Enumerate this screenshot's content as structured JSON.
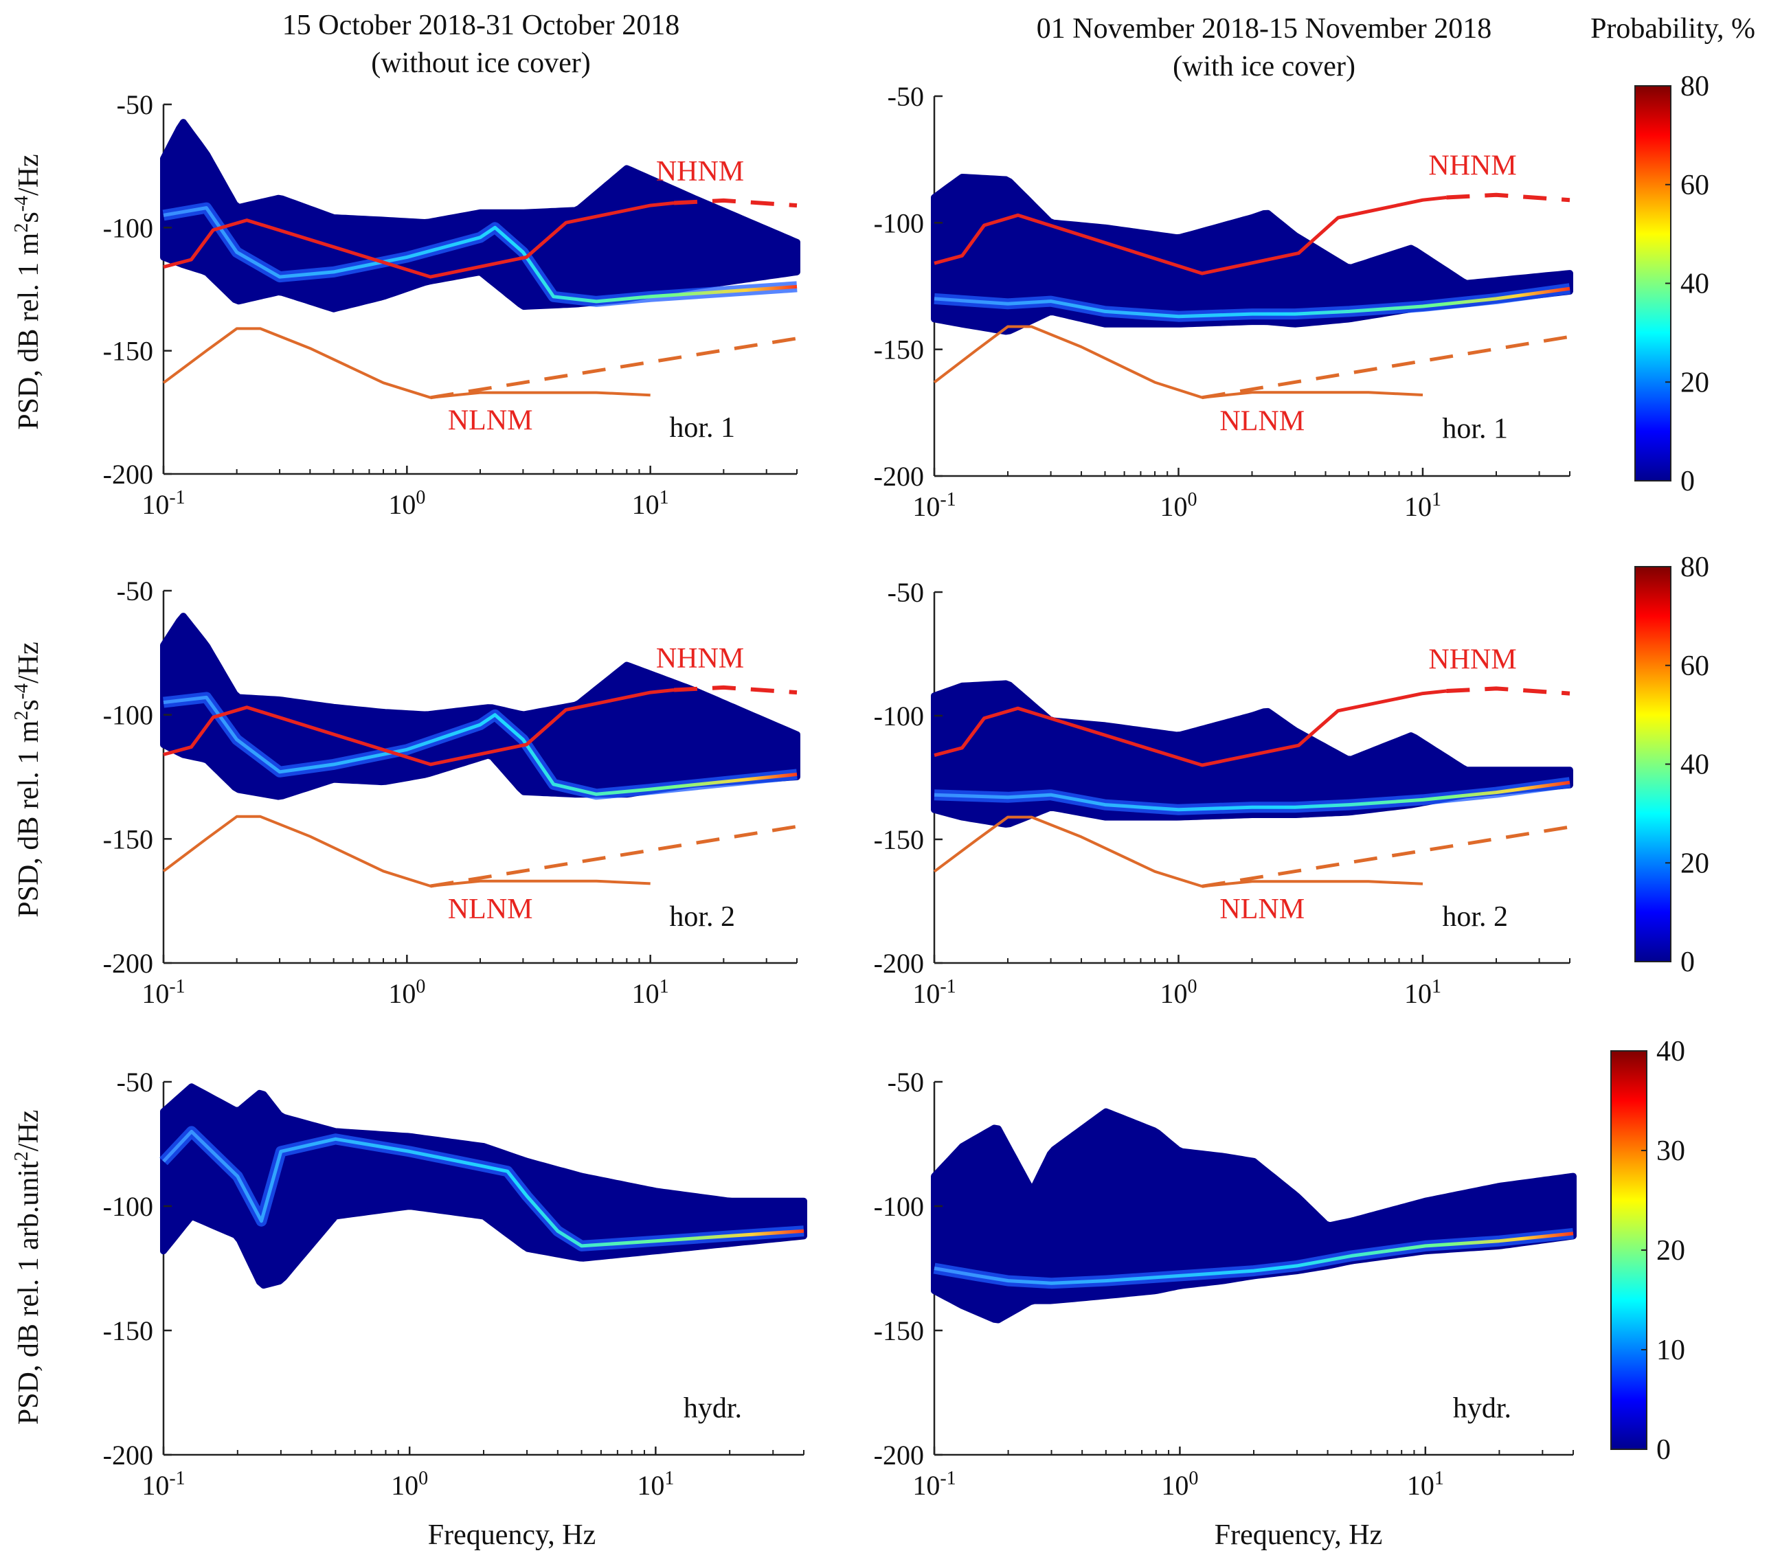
{
  "figure": {
    "columns": [
      {
        "title_line1": "15 October 2018-31 October 2018",
        "title_line2": "(without ice cover)"
      },
      {
        "title_line1": "01 November 2018-15 November 2018",
        "title_line2": "(with ice cover)"
      }
    ],
    "colorbar_title": "Probability, %",
    "row_ylabels": [
      [
        "PSD, dB rel. 1 m",
        "2",
        "s",
        "-4",
        "/Hz"
      ],
      [
        "PSD, dB rel. 1 m",
        "2",
        "s",
        "-4",
        "/Hz"
      ],
      [
        "PSD, dB rel. 1 arb.unit",
        "2",
        "/Hz"
      ]
    ],
    "xlabel": "Frequency, Hz",
    "colors": {
      "nhnm": "#e8241f",
      "nlnm": "#de6a2a",
      "density_low": "#00008f",
      "density_high": "#800000"
    }
  },
  "chart_data": [
    {
      "type": "heatmap",
      "id": "oct-hor1",
      "panel_label": "hor. 1",
      "xscale": "log",
      "xlim": [
        0.1,
        40
      ],
      "ylim": [
        -200,
        -50
      ],
      "xticks": [
        "10",
        "10",
        "10"
      ],
      "xtick_exponents": [
        "-1",
        "0",
        "1"
      ],
      "xtick_values": [
        0.1,
        1,
        10
      ],
      "yticks": [
        "-50",
        "-100",
        "-150",
        "-200"
      ],
      "ytick_values": [
        -50,
        -100,
        -150,
        -200
      ],
      "colorbar": {
        "range": [
          0,
          80
        ],
        "ticks": [
          "0",
          "20",
          "40",
          "60",
          "80"
        ]
      },
      "envelope": {
        "f": [
          0.1,
          0.12,
          0.15,
          0.2,
          0.3,
          0.5,
          0.8,
          1.2,
          2,
          3,
          5,
          8,
          15,
          40
        ],
        "upper": [
          -72,
          -57,
          -70,
          -92,
          -88,
          -96,
          -97,
          -98,
          -94,
          -94,
          -93,
          -76,
          -88,
          -106
        ],
        "lower": [
          -112,
          -115,
          -118,
          -130,
          -126,
          -133,
          -128,
          -122,
          -118,
          -132,
          -131,
          -129,
          -124,
          -118
        ]
      },
      "mode": {
        "f": [
          0.1,
          0.15,
          0.2,
          0.3,
          0.5,
          1,
          2,
          2.3,
          3,
          4,
          6,
          10,
          20,
          40
        ],
        "db": [
          -95,
          -92,
          -110,
          -120,
          -118,
          -112,
          -104,
          -100,
          -110,
          -128,
          -130,
          -128,
          -126,
          -124
        ]
      },
      "nhnm_label": "NHNM",
      "nlnm_label": "NLNM",
      "nhnm": {
        "f": [
          0.1,
          0.13,
          0.16,
          0.22,
          1.25,
          3.1,
          4.5,
          10,
          12.5
        ],
        "db": [
          -116,
          -113,
          -101,
          -97,
          -120,
          -112,
          -98,
          -91,
          -90
        ]
      },
      "nhnm_ext": {
        "f": [
          12.5,
          20,
          40
        ],
        "db": [
          -90,
          -89,
          -91
        ]
      },
      "nlnm": {
        "f": [
          0.1,
          0.15,
          0.2,
          0.25,
          0.4,
          0.8,
          1.25,
          2,
          3,
          6,
          10
        ],
        "db": [
          -163,
          -150,
          -141,
          -141,
          -149,
          -163,
          -169,
          -167,
          -167,
          -167,
          -168
        ]
      },
      "nlnm_ext": {
        "f": [
          1.25,
          40
        ],
        "db": [
          -169,
          -145
        ]
      }
    },
    {
      "type": "heatmap",
      "id": "nov-hor1",
      "panel_label": "hor. 1",
      "xscale": "log",
      "xlim": [
        0.1,
        40
      ],
      "ylim": [
        -200,
        -50
      ],
      "xticks": [
        "10",
        "10",
        "10"
      ],
      "xtick_exponents": [
        "-1",
        "0",
        "1"
      ],
      "xtick_values": [
        0.1,
        1,
        10
      ],
      "yticks": [
        "-50",
        "-100",
        "-150",
        "-200"
      ],
      "ytick_values": [
        -50,
        -100,
        -150,
        -200
      ],
      "colorbar": {
        "range": [
          0,
          80
        ],
        "ticks": [
          "0",
          "20",
          "40",
          "60",
          "80"
        ]
      },
      "envelope": {
        "f": [
          0.1,
          0.13,
          0.2,
          0.3,
          0.5,
          1,
          2,
          2.3,
          3,
          5,
          9,
          15,
          40
        ],
        "upper": [
          -90,
          -82,
          -83,
          -100,
          -102,
          -106,
          -98,
          -96,
          -105,
          -118,
          -110,
          -124,
          -120
        ],
        "lower": [
          -138,
          -140,
          -143,
          -135,
          -140,
          -140,
          -139,
          -139,
          -140,
          -138,
          -134,
          -132,
          -127
        ]
      },
      "mode": {
        "f": [
          0.1,
          0.2,
          0.3,
          0.5,
          1,
          2,
          3,
          5,
          10,
          20,
          40
        ],
        "db": [
          -130,
          -132,
          -131,
          -135,
          -137,
          -136,
          -136,
          -135,
          -133,
          -130,
          -126
        ]
      },
      "nhnm_label": "NHNM",
      "nlnm_label": "NLNM",
      "nhnm": {
        "f": [
          0.1,
          0.13,
          0.16,
          0.22,
          1.25,
          3.1,
          4.5,
          10,
          12.5
        ],
        "db": [
          -116,
          -113,
          -101,
          -97,
          -120,
          -112,
          -98,
          -91,
          -90
        ]
      },
      "nhnm_ext": {
        "f": [
          12.5,
          20,
          40
        ],
        "db": [
          -90,
          -89,
          -91
        ]
      },
      "nlnm": {
        "f": [
          0.1,
          0.15,
          0.2,
          0.25,
          0.4,
          0.8,
          1.25,
          2,
          3,
          6,
          10
        ],
        "db": [
          -163,
          -150,
          -141,
          -141,
          -149,
          -163,
          -169,
          -167,
          -167,
          -167,
          -168
        ]
      },
      "nlnm_ext": {
        "f": [
          1.25,
          40
        ],
        "db": [
          -169,
          -145
        ]
      }
    },
    {
      "type": "heatmap",
      "id": "oct-hor2",
      "panel_label": "hor. 2",
      "xscale": "log",
      "xlim": [
        0.1,
        40
      ],
      "ylim": [
        -200,
        -50
      ],
      "xticks": [
        "10",
        "10",
        "10"
      ],
      "xtick_exponents": [
        "-1",
        "0",
        "1"
      ],
      "xtick_values": [
        0.1,
        1,
        10
      ],
      "yticks": [
        "-50",
        "-100",
        "-150",
        "-200"
      ],
      "ytick_values": [
        -50,
        -100,
        -150,
        -200
      ],
      "colorbar": {
        "range": [
          0,
          80
        ],
        "ticks": [
          "0",
          "20",
          "40",
          "60",
          "80"
        ]
      },
      "envelope": {
        "f": [
          0.1,
          0.12,
          0.15,
          0.2,
          0.3,
          0.5,
          0.8,
          1.2,
          2.2,
          3,
          5,
          8,
          15,
          40
        ],
        "upper": [
          -72,
          -60,
          -72,
          -93,
          -94,
          -97,
          -99,
          -100,
          -97,
          -100,
          -96,
          -80,
          -90,
          -108
        ],
        "lower": [
          -112,
          -116,
          -118,
          -130,
          -133,
          -126,
          -127,
          -124,
          -116,
          -131,
          -132,
          -132,
          -128,
          -125
        ]
      },
      "mode": {
        "f": [
          0.1,
          0.15,
          0.2,
          0.3,
          0.5,
          1,
          2,
          2.3,
          3,
          4,
          6,
          10,
          20,
          40
        ],
        "db": [
          -95,
          -93,
          -110,
          -123,
          -120,
          -114,
          -104,
          -100,
          -110,
          -128,
          -132,
          -130,
          -127,
          -124
        ]
      },
      "nhnm_label": "NHNM",
      "nlnm_label": "NLNM",
      "nhnm": {
        "f": [
          0.1,
          0.13,
          0.16,
          0.22,
          1.25,
          3.1,
          4.5,
          10,
          12.5
        ],
        "db": [
          -116,
          -113,
          -101,
          -97,
          -120,
          -112,
          -98,
          -91,
          -90
        ]
      },
      "nhnm_ext": {
        "f": [
          12.5,
          20,
          40
        ],
        "db": [
          -90,
          -89,
          -91
        ]
      },
      "nlnm": {
        "f": [
          0.1,
          0.15,
          0.2,
          0.25,
          0.4,
          0.8,
          1.25,
          2,
          3,
          6,
          10
        ],
        "db": [
          -163,
          -150,
          -141,
          -141,
          -149,
          -163,
          -169,
          -167,
          -167,
          -167,
          -168
        ]
      },
      "nlnm_ext": {
        "f": [
          1.25,
          40
        ],
        "db": [
          -169,
          -145
        ]
      }
    },
    {
      "type": "heatmap",
      "id": "nov-hor2",
      "panel_label": "hor. 2",
      "xscale": "log",
      "xlim": [
        0.1,
        40
      ],
      "ylim": [
        -200,
        -50
      ],
      "xticks": [
        "10",
        "10",
        "10"
      ],
      "xtick_exponents": [
        "-1",
        "0",
        "1"
      ],
      "xtick_values": [
        0.1,
        1,
        10
      ],
      "yticks": [
        "-50",
        "-100",
        "-150",
        "-200"
      ],
      "ytick_values": [
        -50,
        -100,
        -150,
        -200
      ],
      "colorbar": {
        "range": [
          0,
          80
        ],
        "ticks": [
          "0",
          "20",
          "40",
          "60",
          "80"
        ]
      },
      "envelope": {
        "f": [
          0.1,
          0.13,
          0.2,
          0.3,
          0.5,
          1,
          2,
          2.3,
          3,
          5,
          9,
          15,
          40
        ],
        "upper": [
          -92,
          -88,
          -87,
          -102,
          -104,
          -108,
          -100,
          -98,
          -106,
          -118,
          -108,
          -122,
          -122
        ],
        "lower": [
          -138,
          -141,
          -144,
          -137,
          -141,
          -141,
          -140,
          -140,
          -140,
          -139,
          -136,
          -132,
          -128
        ]
      },
      "mode": {
        "f": [
          0.1,
          0.2,
          0.3,
          0.5,
          1,
          2,
          3,
          5,
          10,
          20,
          40
        ],
        "db": [
          -132,
          -133,
          -132,
          -136,
          -138,
          -137,
          -137,
          -136,
          -134,
          -131,
          -127
        ]
      },
      "nhnm_label": "NHNM",
      "nlnm_label": "NLNM",
      "nhnm": {
        "f": [
          0.1,
          0.13,
          0.16,
          0.22,
          1.25,
          3.1,
          4.5,
          10,
          12.5
        ],
        "db": [
          -116,
          -113,
          -101,
          -97,
          -120,
          -112,
          -98,
          -91,
          -90
        ]
      },
      "nhnm_ext": {
        "f": [
          12.5,
          20,
          40
        ],
        "db": [
          -90,
          -89,
          -91
        ]
      },
      "nlnm": {
        "f": [
          0.1,
          0.15,
          0.2,
          0.25,
          0.4,
          0.8,
          1.25,
          2,
          3,
          6,
          10
        ],
        "db": [
          -163,
          -150,
          -141,
          -141,
          -149,
          -163,
          -169,
          -167,
          -167,
          -167,
          -168
        ]
      },
      "nlnm_ext": {
        "f": [
          1.25,
          40
        ],
        "db": [
          -169,
          -145
        ]
      }
    },
    {
      "type": "heatmap",
      "id": "oct-hydr",
      "panel_label": "hydr.",
      "xscale": "log",
      "xlim": [
        0.1,
        40
      ],
      "ylim": [
        -200,
        -50
      ],
      "xticks": [
        "10",
        "10",
        "10"
      ],
      "xtick_exponents": [
        "-1",
        "0",
        "1"
      ],
      "xtick_values": [
        0.1,
        1,
        10
      ],
      "yticks": [
        "-50",
        "-100",
        "-150",
        "-200"
      ],
      "ytick_values": [
        -50,
        -100,
        -150,
        -200
      ],
      "colorbar": {
        "range": [
          0,
          40
        ],
        "ticks": [
          "0",
          "10",
          "20",
          "30",
          "40"
        ]
      },
      "envelope": {
        "f": [
          0.1,
          0.13,
          0.2,
          0.25,
          0.3,
          0.5,
          1,
          2,
          3,
          5,
          10,
          20,
          40
        ],
        "upper": [
          -62,
          -52,
          -62,
          -54,
          -64,
          -70,
          -72,
          -76,
          -82,
          -88,
          -94,
          -98,
          -98
        ],
        "lower": [
          -118,
          -104,
          -112,
          -132,
          -130,
          -104,
          -100,
          -104,
          -117,
          -121,
          -118,
          -115,
          -112
        ]
      },
      "mode": {
        "f": [
          0.1,
          0.13,
          0.2,
          0.25,
          0.3,
          0.5,
          1,
          2,
          2.5,
          3,
          4,
          5,
          10,
          20,
          40
        ],
        "db": [
          -82,
          -70,
          -88,
          -106,
          -78,
          -73,
          -78,
          -84,
          -86,
          -96,
          -110,
          -116,
          -114,
          -112,
          -110
        ]
      }
    },
    {
      "type": "heatmap",
      "id": "nov-hydr",
      "panel_label": "hydr.",
      "xscale": "log",
      "xlim": [
        0.1,
        40
      ],
      "ylim": [
        -200,
        -50
      ],
      "xticks": [
        "10",
        "10",
        "10"
      ],
      "xtick_exponents": [
        "-1",
        "0",
        "1"
      ],
      "xtick_values": [
        0.1,
        1,
        10
      ],
      "yticks": [
        "-50",
        "-100",
        "-150",
        "-200"
      ],
      "ytick_values": [
        -50,
        -100,
        -150,
        -200
      ],
      "colorbar": {
        "range": [
          0,
          40
        ],
        "ticks": [
          "0",
          "10",
          "20",
          "30",
          "40"
        ]
      },
      "envelope": {
        "f": [
          0.1,
          0.13,
          0.18,
          0.25,
          0.3,
          0.5,
          0.8,
          1,
          1.5,
          2,
          3,
          4,
          5,
          10,
          20,
          40
        ],
        "upper": [
          -88,
          -76,
          -68,
          -94,
          -78,
          -62,
          -70,
          -78,
          -80,
          -82,
          -96,
          -108,
          -106,
          -98,
          -92,
          -88
        ],
        "lower": [
          -134,
          -140,
          -146,
          -138,
          -138,
          -136,
          -134,
          -132,
          -130,
          -128,
          -126,
          -124,
          -122,
          -118,
          -116,
          -112
        ]
      },
      "mode": {
        "f": [
          0.1,
          0.15,
          0.2,
          0.3,
          0.5,
          1,
          2,
          3,
          5,
          10,
          20,
          40
        ],
        "db": [
          -125,
          -128,
          -130,
          -131,
          -130,
          -128,
          -126,
          -124,
          -120,
          -116,
          -114,
          -111
        ]
      }
    }
  ]
}
